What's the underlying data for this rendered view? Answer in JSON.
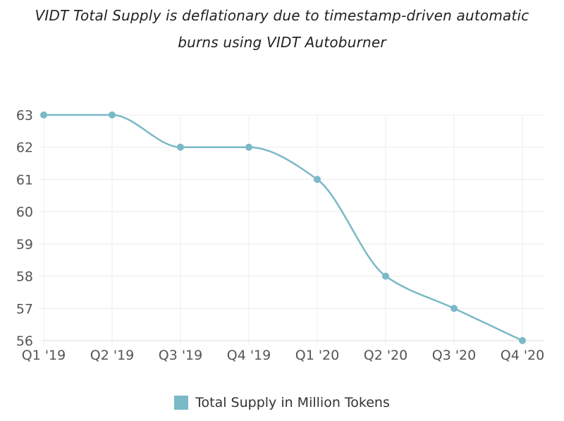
{
  "chart_data": {
    "type": "line",
    "title_lines": [
      "VIDT Total Supply is deflationary due to timestamp-driven automatic",
      "burns using VIDT Autoburner"
    ],
    "categories": [
      "Q1 '19",
      "Q2 '19",
      "Q3 '19",
      "Q4 '19",
      "Q1 '20",
      "Q2 '20",
      "Q3 '20",
      "Q4 '20"
    ],
    "series": [
      {
        "name": "Total Supply in Million Tokens",
        "values": [
          63,
          63,
          62,
          62,
          61,
          58,
          57,
          56
        ],
        "color": "#7ab9c6"
      }
    ],
    "y_ticks": [
      63,
      62,
      61,
      60,
      59,
      58,
      57,
      56
    ],
    "ylim": [
      56,
      63
    ],
    "grid": true,
    "legend_position": "bottom-center"
  }
}
